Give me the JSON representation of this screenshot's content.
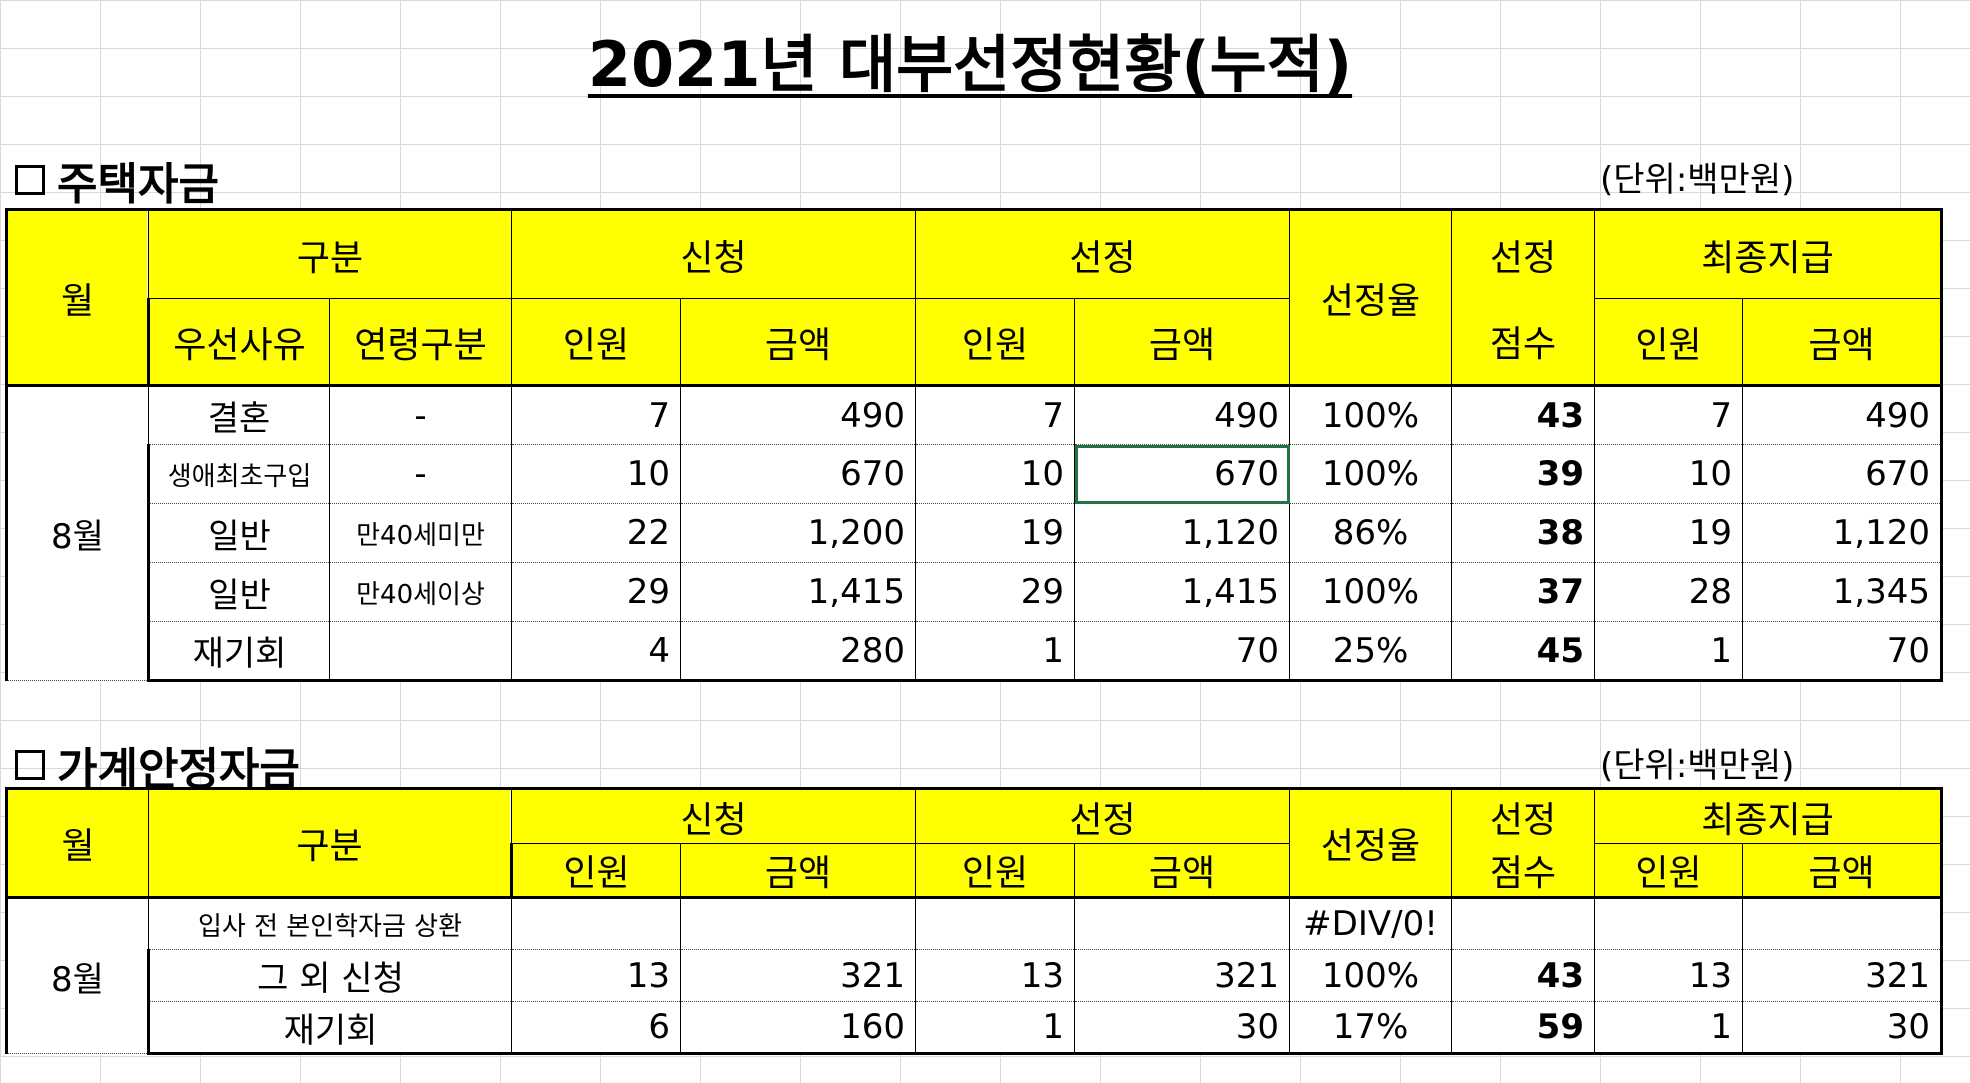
{
  "title": "2021년 대부선정현황(누적)",
  "housing": {
    "heading": "주택자금",
    "unit": "(단위:백만원)",
    "headers": {
      "month": "월",
      "category": "구분",
      "apply": "신청",
      "select": "선정",
      "rate": "선정율",
      "score_top": "선정",
      "score_bottom": "점수",
      "final": "최종지급",
      "reason": "우선사유",
      "age": "연령구분",
      "people": "인원",
      "amount": "금액"
    },
    "month_value": "8월",
    "rows": [
      {
        "reason": "결혼",
        "age": "-",
        "apply_people": "7",
        "apply_amount": "490",
        "sel_people": "7",
        "sel_amount": "490",
        "rate": "100%",
        "score": "43",
        "final_people": "7",
        "final_amount": "490"
      },
      {
        "reason": "생애최초구입",
        "age": "-",
        "apply_people": "10",
        "apply_amount": "670",
        "sel_people": "10",
        "sel_amount": "670",
        "rate": "100%",
        "score": "39",
        "final_people": "10",
        "final_amount": "670"
      },
      {
        "reason": "일반",
        "age": "만40세미만",
        "apply_people": "22",
        "apply_amount": "1,200",
        "sel_people": "19",
        "sel_amount": "1,120",
        "rate": "86%",
        "score": "38",
        "final_people": "19",
        "final_amount": "1,120"
      },
      {
        "reason": "일반",
        "age": "만40세이상",
        "apply_people": "29",
        "apply_amount": "1,415",
        "sel_people": "29",
        "sel_amount": "1,415",
        "rate": "100%",
        "score": "37",
        "final_people": "28",
        "final_amount": "1,345"
      },
      {
        "reason": "재기회",
        "age": "",
        "apply_people": "4",
        "apply_amount": "280",
        "sel_people": "1",
        "sel_amount": "70",
        "rate": "25%",
        "score": "45",
        "final_people": "1",
        "final_amount": "70"
      }
    ]
  },
  "living": {
    "heading": "가계안정자금",
    "unit": "(단위:백만원)",
    "headers": {
      "month": "월",
      "category": "구분",
      "apply": "신청",
      "select": "선정",
      "rate": "선정율",
      "score_top": "선정",
      "score_bottom": "점수",
      "final": "최종지급",
      "people": "인원",
      "amount": "금액"
    },
    "month_value": "8월",
    "rows": [
      {
        "category": "입사 전 본인학자금 상환",
        "apply_people": "",
        "apply_amount": "",
        "sel_people": "",
        "sel_amount": "",
        "rate": "#DIV/0!",
        "score": "",
        "final_people": "",
        "final_amount": ""
      },
      {
        "category": "그 외 신청",
        "apply_people": "13",
        "apply_amount": "321",
        "sel_people": "13",
        "sel_amount": "321",
        "rate": "100%",
        "score": "43",
        "final_people": "13",
        "final_amount": "321"
      },
      {
        "category": "재기회",
        "apply_people": "6",
        "apply_amount": "160",
        "sel_people": "1",
        "sel_amount": "30",
        "rate": "17%",
        "score": "59",
        "final_people": "1",
        "final_amount": "30"
      }
    ]
  }
}
